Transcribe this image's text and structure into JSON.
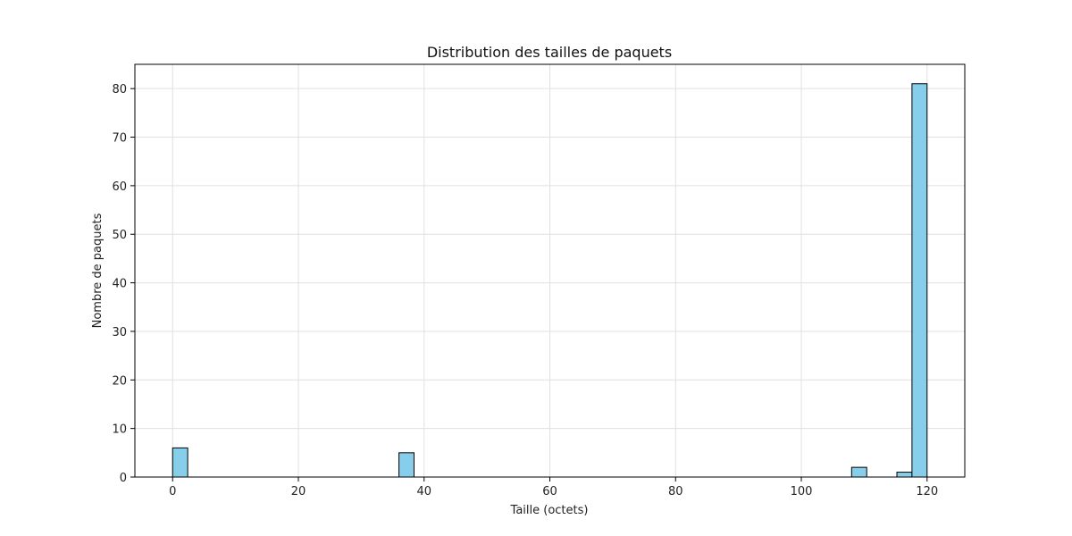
{
  "chart_data": {
    "type": "bar",
    "title": "Distribution des tailles de paquets",
    "xlabel": "Taille (octets)",
    "ylabel": "Nombre de paquets",
    "xlim": [
      -6,
      126
    ],
    "ylim": [
      0,
      85
    ],
    "xticks": [
      0,
      20,
      40,
      60,
      80,
      100,
      120
    ],
    "yticks": [
      0,
      10,
      20,
      30,
      40,
      50,
      60,
      70,
      80
    ],
    "grid": true,
    "bin_width": 2.4,
    "bars": [
      {
        "x_start": 0,
        "x_end": 2.4,
        "count": 6
      },
      {
        "x_start": 36,
        "x_end": 38.4,
        "count": 5
      },
      {
        "x_start": 108,
        "x_end": 110.4,
        "count": 2
      },
      {
        "x_start": 115.2,
        "x_end": 117.6,
        "count": 1
      },
      {
        "x_start": 117.6,
        "x_end": 120,
        "count": 81
      }
    ],
    "colors": {
      "bar_fill": "#87ceeb",
      "bar_edge": "#000000",
      "grid": "#e0e0e0"
    }
  }
}
